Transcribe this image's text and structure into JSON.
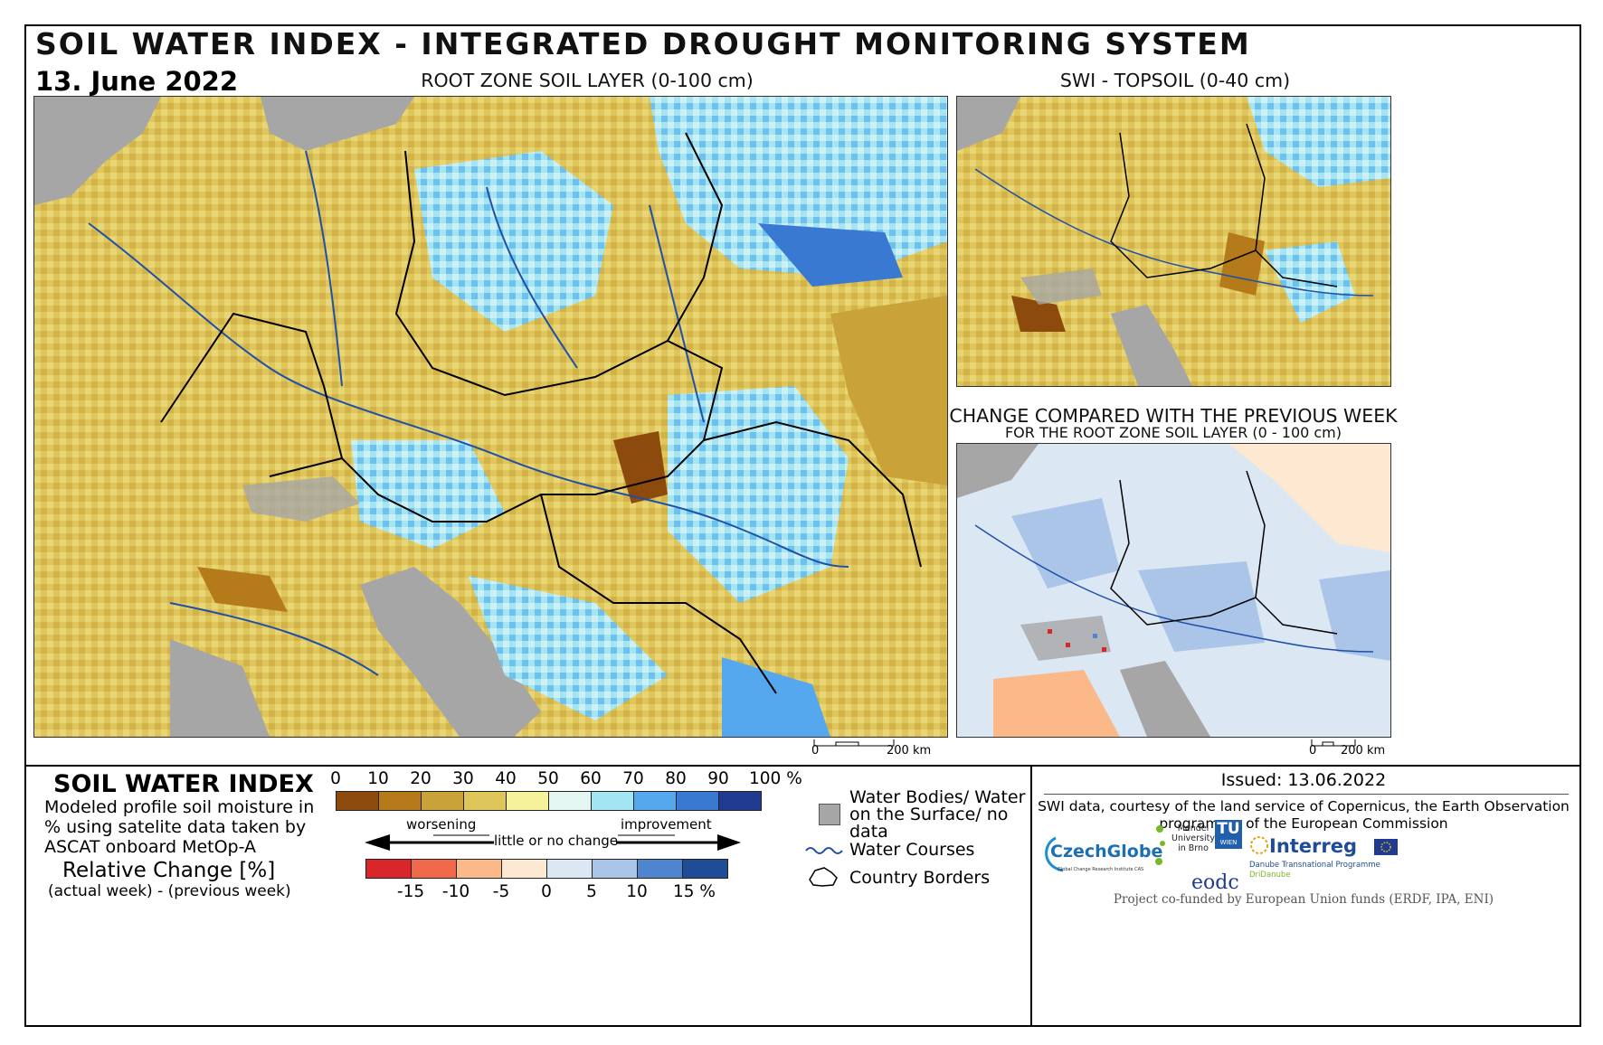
{
  "header": {
    "title": "SOIL WATER INDEX - INTEGRATED DROUGHT MONITORING SYSTEM",
    "date": "13. June 2022"
  },
  "maps": {
    "root_zone": {
      "caption": "ROOT ZONE SOIL LAYER (0-100 cm)"
    },
    "topsoil": {
      "caption": "SWI - TOPSOIL (0-40 cm)"
    },
    "change": {
      "caption": "CHANGE COMPARED WITH THE PREVIOUS WEEK",
      "subcaption": "FOR THE ROOT ZONE SOIL LAYER (0 - 100 cm)"
    },
    "scale_bar_main": {
      "zero": "0",
      "label": "200 km"
    },
    "scale_bar_change": {
      "zero": "0",
      "label": "200 km"
    }
  },
  "legend": {
    "swi_title": "SOIL WATER INDEX",
    "swi_description": "Modeled profile soil moisture in % using satelite data taken by ASCAT onboard MetOp-A",
    "swi_ticks": [
      "0",
      "10",
      "20",
      "30",
      "40",
      "50",
      "60",
      "70",
      "80",
      "90",
      "100 %"
    ],
    "swi_colors": [
      "#8c4a0c",
      "#b57b1a",
      "#c9a23a",
      "#dfc65a",
      "#f6f29b",
      "#e4f6f2",
      "#a3e6f2",
      "#55a8ee",
      "#3a79d2",
      "#1f3a8e"
    ],
    "rc_title": "Relative Change [%]",
    "rc_subtitle": "(actual week) - (previous week)",
    "arrow_worsening": "worsening",
    "arrow_little": "little or no change",
    "arrow_improvement": "improvement",
    "rc_ticks": [
      "-15",
      "-10",
      "-5",
      "0",
      "5",
      "10",
      "15 %"
    ],
    "rc_colors": [
      "#d9262a",
      "#f0684a",
      "#fbb98a",
      "#fde8d2",
      "#dce7f4",
      "#aac5e8",
      "#4f84cf",
      "#1f4c97"
    ],
    "water_bodies": "Water Bodies/ Water on the Surface/ no data",
    "water_courses": "Water Courses",
    "country_borders": "Country Borders",
    "water_body_color": "#a6a6a6",
    "water_course_color": "#1f4fa8"
  },
  "credits": {
    "issued": "Issued: 13.06.2022",
    "text": "SWI data, courtesy of the land service of Copernicus, the Earth Observation programme of the European Commission",
    "cofunded": "Project co-funded by European Union funds (ERDF, IPA, ENI)",
    "logos": {
      "czechglobe": "CzechGlobe",
      "czechglobe_sub": "Global Change Research Institute CAS",
      "mendel": "Mendel University in Brno",
      "tu": "TU",
      "tu_sub": "WIEN",
      "eodc": "eodc",
      "interreg": "Interreg",
      "interreg_sub1": "Danube Transnational Programme",
      "interreg_sub2": "DriDanube"
    }
  }
}
